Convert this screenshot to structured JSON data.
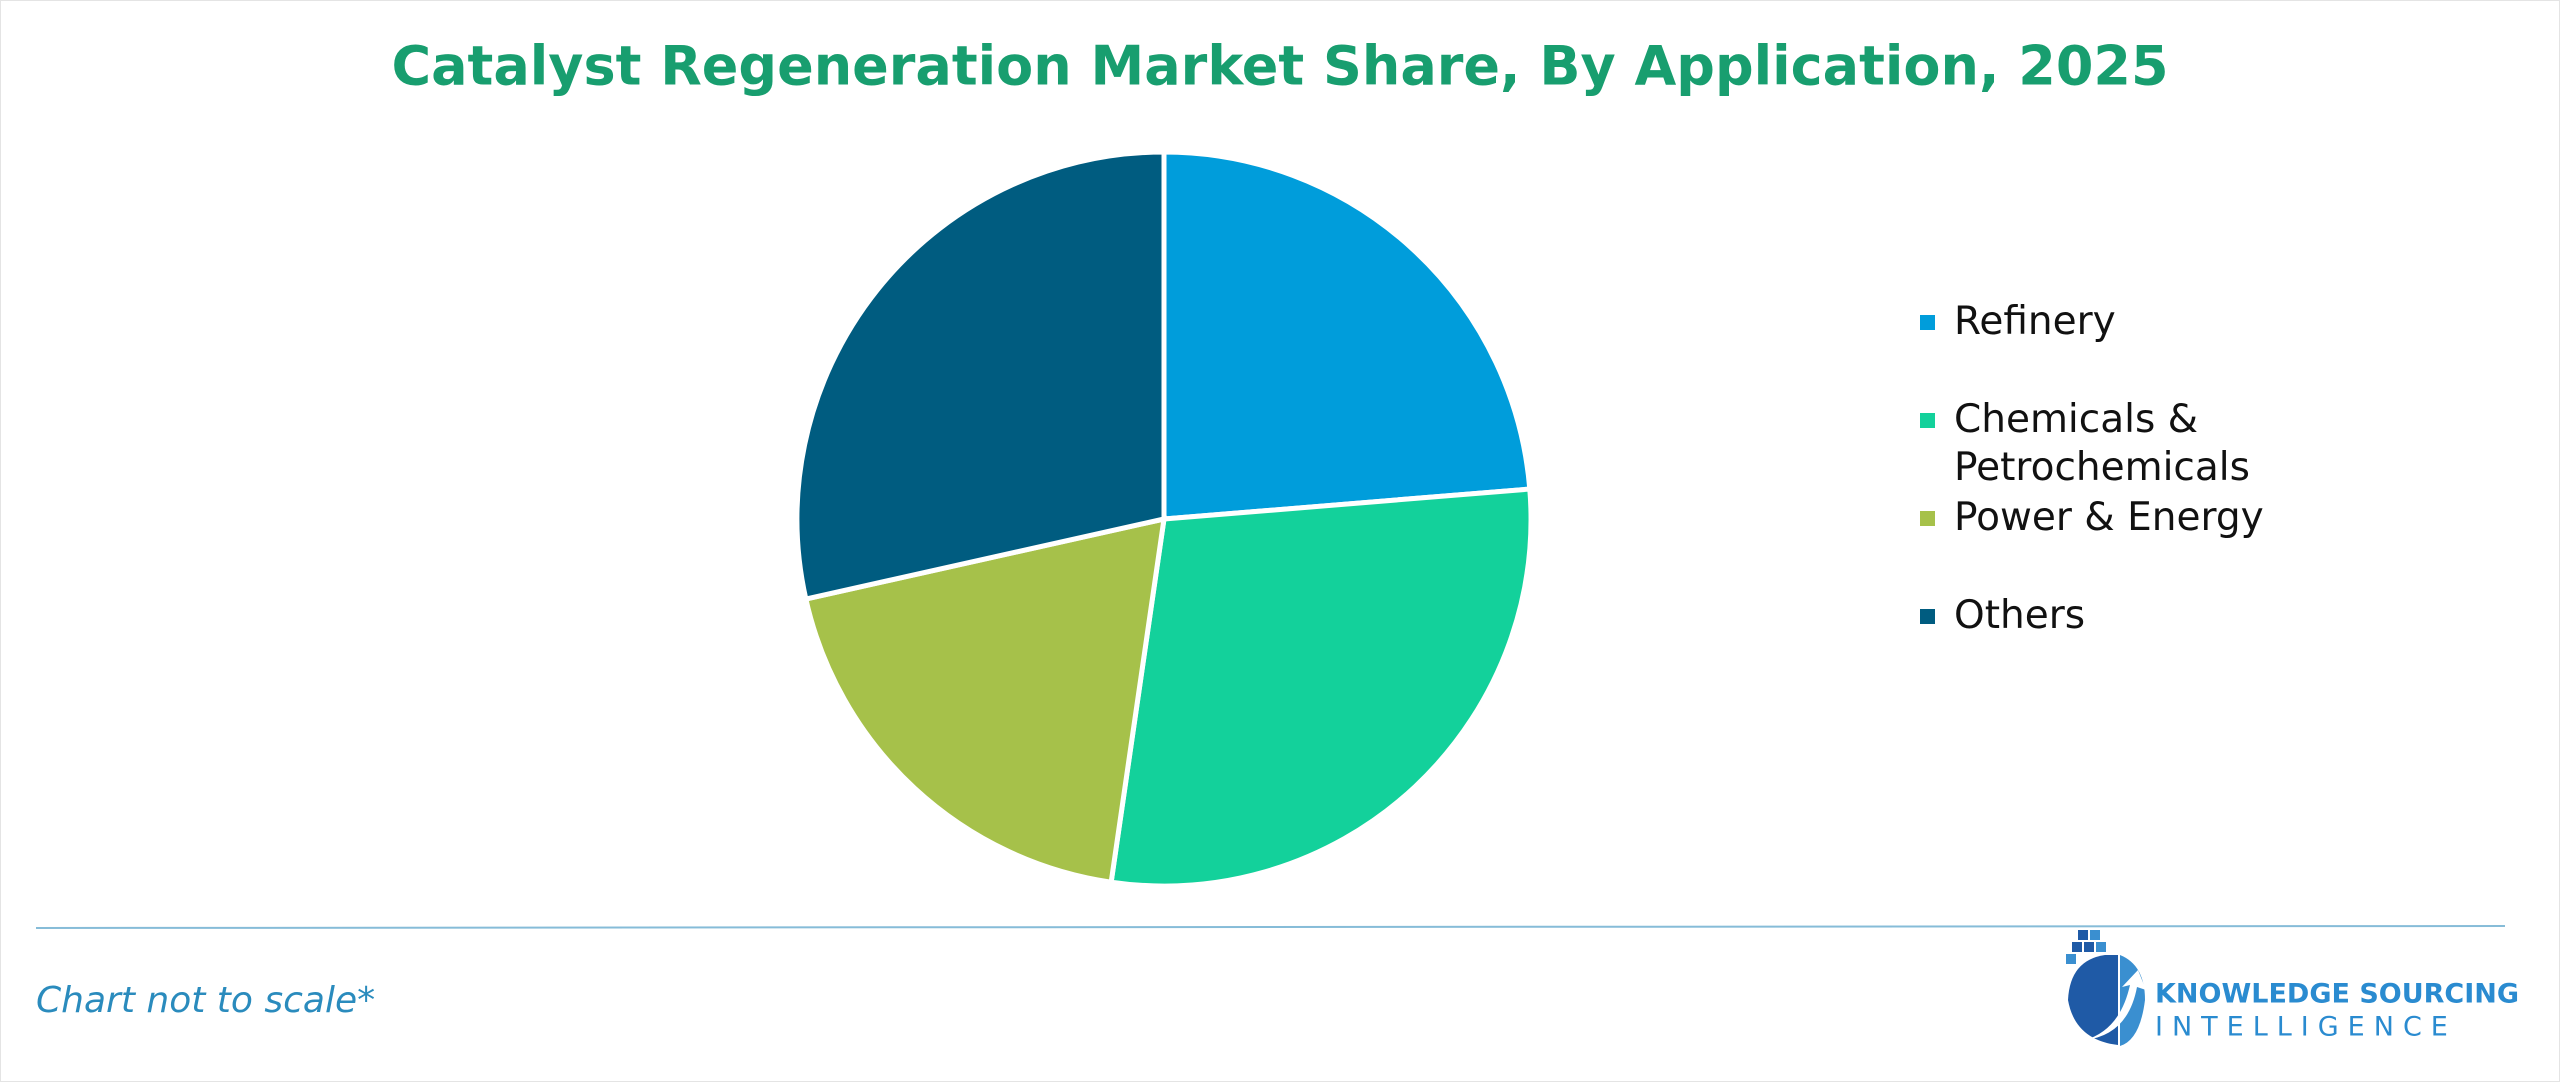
{
  "chart_data": {
    "type": "pie",
    "title": "Catalyst Regeneration Market Share, By Application, 2025",
    "categories": [
      "Refinery",
      "Chemicals & Petrochemicals",
      "Power & Energy",
      "Others"
    ],
    "values": [
      23.7,
      28.6,
      19.2,
      28.5
    ],
    "colors": [
      "#009ddb",
      "#13d19b",
      "#a6c14a",
      "#005c80"
    ],
    "legend": "right"
  },
  "footer": {
    "note": "Chart not to scale*",
    "brand_line1": "KNOWLEDGE SOURCING",
    "brand_line2": "INTELLIGENCE"
  }
}
